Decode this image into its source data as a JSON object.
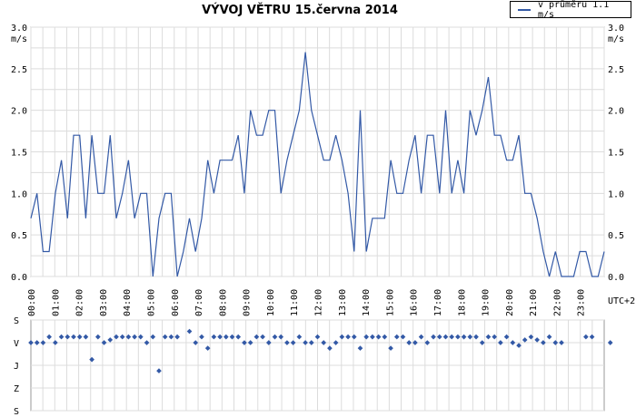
{
  "chart_data": [
    {
      "type": "line",
      "title": "VÝVOJ VĚTRU  15.června 2014",
      "legend_position": "top-right",
      "ylabel": "m/s",
      "xlabel": "UTC+2",
      "ylim": [
        0,
        3.0
      ],
      "yticks": [
        "0.0",
        "0.5",
        "1.0",
        "1.5",
        "2.0",
        "2.5",
        "3.0"
      ],
      "xticks": [
        "00:00",
        "01:00",
        "02:00",
        "03:00",
        "04:00",
        "05:00",
        "06:00",
        "07:00",
        "08:00",
        "09:00",
        "10:00",
        "11:00",
        "12:00",
        "13:00",
        "14:00",
        "15:00",
        "16:00",
        "17:00",
        "18:00",
        "19:00",
        "20:00",
        "21:00",
        "22:00",
        "23:00"
      ],
      "grid": true,
      "series": [
        {
          "name": "v průměru 1.1 m/s",
          "color": "#3359a6",
          "values": [
            0.7,
            1.0,
            0.3,
            0.3,
            1.0,
            1.4,
            0.7,
            1.7,
            1.7,
            0.7,
            1.7,
            1.0,
            1.0,
            1.7,
            0.7,
            1.0,
            1.4,
            0.7,
            1.0,
            1.0,
            0.0,
            0.7,
            1.0,
            1.0,
            0.0,
            0.3,
            0.7,
            0.3,
            0.7,
            1.4,
            1.0,
            1.4,
            1.4,
            1.4,
            1.7,
            1.0,
            2.0,
            1.7,
            1.7,
            2.0,
            2.0,
            1.0,
            1.4,
            1.7,
            2.0,
            2.7,
            2.0,
            1.7,
            1.4,
            1.4,
            1.7,
            1.4,
            1.0,
            0.3,
            2.0,
            0.3,
            0.7,
            0.7,
            0.7,
            1.4,
            1.0,
            1.0,
            1.4,
            1.7,
            1.0,
            1.7,
            1.7,
            1.0,
            2.0,
            1.0,
            1.4,
            1.0,
            2.0,
            1.7,
            2.0,
            2.4,
            1.7,
            1.7,
            1.4,
            1.4,
            1.7,
            1.0,
            1.0,
            0.7,
            0.3,
            0.0,
            0.3,
            0.0,
            0.0,
            0.0,
            0.3,
            0.3,
            0.0,
            0.0,
            0.3
          ]
        }
      ]
    },
    {
      "type": "scatter",
      "title": "",
      "ylabel": "",
      "xlabel": "",
      "yticks": [
        "S",
        "V",
        "J",
        "Z",
        "S"
      ],
      "grid": true,
      "series": [
        {
          "name": "",
          "color": "#3359a6",
          "values": [
            90,
            90,
            90,
            67,
            90,
            67,
            67,
            67,
            67,
            67,
            157,
            67,
            90,
            79,
            67,
            67,
            67,
            67,
            67,
            90,
            67,
            202,
            67,
            67,
            67,
            null,
            45,
            90,
            67,
            112,
            67,
            67,
            67,
            67,
            67,
            90,
            90,
            67,
            67,
            90,
            67,
            67,
            90,
            90,
            67,
            90,
            90,
            67,
            90,
            112,
            90,
            67,
            67,
            67,
            112,
            67,
            67,
            67,
            67,
            112,
            67,
            67,
            90,
            90,
            67,
            90,
            67,
            67,
            67,
            67,
            67,
            67,
            67,
            67,
            90,
            67,
            67,
            90,
            67,
            90,
            101,
            79,
            67,
            79,
            90,
            67,
            90,
            90,
            null,
            null,
            null,
            67,
            67,
            null,
            null,
            90
          ]
        }
      ]
    }
  ]
}
